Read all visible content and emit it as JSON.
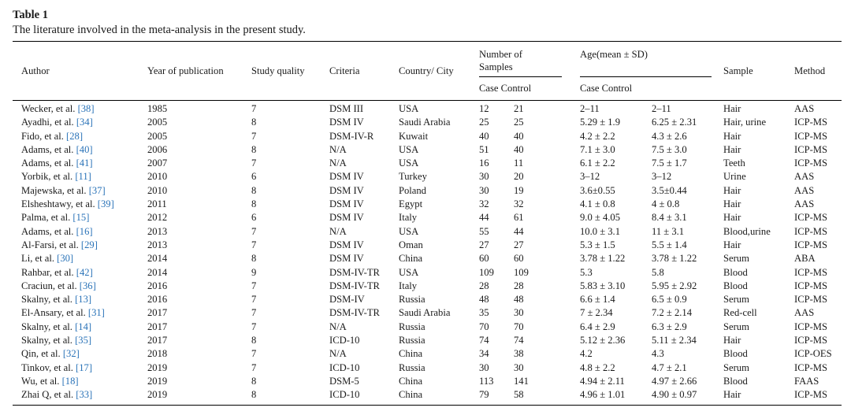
{
  "table": {
    "label": "Table 1",
    "caption": "The literature involved in the meta-analysis in the present study.",
    "headers": {
      "author": "Author",
      "year": "Year of publication",
      "quality": "Study quality",
      "criteria": "Criteria",
      "country": "Country/ City",
      "samples_group": "Number of Samples",
      "samples_line1": "Number of",
      "samples_line2": "Samples",
      "age_group": "Age(mean ± SD)",
      "case_control_left": "Case Control",
      "case_control_right": "Case Control",
      "sample": "Sample",
      "method": "Method"
    },
    "rows": [
      {
        "author": "Wecker, et al.",
        "ref": "[38]",
        "year": "1985",
        "quality": "7",
        "criteria": "DSM III",
        "country": "USA",
        "n_case": "12",
        "n_control": "21",
        "age_case": "2–11",
        "age_control": "2–11",
        "sample": "Hair",
        "method": "AAS"
      },
      {
        "author": "Ayadhi, et al.",
        "ref": "[34]",
        "year": "2005",
        "quality": "8",
        "criteria": "DSM IV",
        "country": "Saudi Arabia",
        "n_case": "25",
        "n_control": "25",
        "age_case": "5.29 ± 1.9",
        "age_control": "6.25 ± 2.31",
        "sample": "Hair, urine",
        "method": "ICP-MS"
      },
      {
        "author": "Fido, et al.",
        "ref": "[28]",
        "year": "2005",
        "quality": "7",
        "criteria": "DSM-IV-R",
        "country": "Kuwait",
        "n_case": "40",
        "n_control": "40",
        "age_case": "4.2 ± 2.2",
        "age_control": "4.3 ± 2.6",
        "sample": "Hair",
        "method": "ICP-MS"
      },
      {
        "author": "Adams, et al.",
        "ref": "[40]",
        "year": "2006",
        "quality": "8",
        "criteria": "N/A",
        "country": "USA",
        "n_case": "51",
        "n_control": "40",
        "age_case": "7.1 ± 3.0",
        "age_control": "7.5 ± 3.0",
        "sample": "Hair",
        "method": "ICP-MS"
      },
      {
        "author": "Adams, et al.",
        "ref": "[41]",
        "year": "2007",
        "quality": "7",
        "criteria": "N/A",
        "country": "USA",
        "n_case": "16",
        "n_control": "11",
        "age_case": "6.1 ± 2.2",
        "age_control": "7.5 ± 1.7",
        "sample": "Teeth",
        "method": "ICP-MS"
      },
      {
        "author": "Yorbik, et al.",
        "ref": "[11]",
        "year": "2010",
        "quality": "6",
        "criteria": "DSM IV",
        "country": "Turkey",
        "n_case": "30",
        "n_control": "20",
        "age_case": "3–12",
        "age_control": "3–12",
        "sample": "Urine",
        "method": "AAS"
      },
      {
        "author": "Majewska, et al.",
        "ref": "[37]",
        "year": "2010",
        "quality": "8",
        "criteria": "DSM IV",
        "country": "Poland",
        "n_case": "30",
        "n_control": "19",
        "age_case": "3.6±0.55",
        "age_control": "3.5±0.44",
        "sample": "Hair",
        "method": "AAS"
      },
      {
        "author": "Elsheshtawy, et al.",
        "ref": "[39]",
        "year": "2011",
        "quality": "8",
        "criteria": "DSM IV",
        "country": "Egypt",
        "n_case": "32",
        "n_control": "32",
        "age_case": "4.1 ± 0.8",
        "age_control": "4 ± 0.8",
        "sample": "Hair",
        "method": "AAS"
      },
      {
        "author": "Palma, et al.",
        "ref": "[15]",
        "year": "2012",
        "quality": "6",
        "criteria": "DSM IV",
        "country": "Italy",
        "n_case": "44",
        "n_control": "61",
        "age_case": "9.0 ± 4.05",
        "age_control": "8.4 ± 3.1",
        "sample": "Hair",
        "method": "ICP-MS"
      },
      {
        "author": "Adams, et al.",
        "ref": "[16]",
        "year": "2013",
        "quality": "7",
        "criteria": "N/A",
        "country": "USA",
        "n_case": "55",
        "n_control": "44",
        "age_case": "10.0 ± 3.1",
        "age_control": "11 ± 3.1",
        "sample": "Blood,urine",
        "method": "ICP-MS"
      },
      {
        "author": "Al-Farsi, et al.",
        "ref": "[29]",
        "year": "2013",
        "quality": "7",
        "criteria": "DSM IV",
        "country": "Oman",
        "n_case": "27",
        "n_control": "27",
        "age_case": "5.3 ± 1.5",
        "age_control": "5.5 ± 1.4",
        "sample": "Hair",
        "method": "ICP-MS"
      },
      {
        "author": "Li, et al.",
        "ref": "[30]",
        "year": "2014",
        "quality": "8",
        "criteria": "DSM IV",
        "country": "China",
        "n_case": "60",
        "n_control": "60",
        "age_case": "3.78 ± 1.22",
        "age_control": "3.78 ± 1.22",
        "sample": "Serum",
        "method": "ABA"
      },
      {
        "author": "Rahbar, et al.",
        "ref": "[42]",
        "year": "2014",
        "quality": "9",
        "criteria": "DSM-IV-TR",
        "country": "USA",
        "n_case": "109",
        "n_control": "109",
        "age_case": "5.3",
        "age_control": "5.8",
        "sample": "Blood",
        "method": "ICP-MS"
      },
      {
        "author": "Craciun, et al.",
        "ref": "[36]",
        "year": "2016",
        "quality": "7",
        "criteria": "DSM-IV-TR",
        "country": "Italy",
        "n_case": "28",
        "n_control": "28",
        "age_case": "5.83 ± 3.10",
        "age_control": "5.95 ± 2.92",
        "sample": "Blood",
        "method": "ICP-MS"
      },
      {
        "author": "Skalny, et al.",
        "ref": "[13]",
        "year": "2016",
        "quality": "7",
        "criteria": "DSM-IV",
        "country": "Russia",
        "n_case": "48",
        "n_control": "48",
        "age_case": "6.6 ± 1.4",
        "age_control": "6.5 ± 0.9",
        "sample": "Serum",
        "method": "ICP-MS"
      },
      {
        "author": "El-Ansary, et al.",
        "ref": "[31]",
        "year": "2017",
        "quality": "7",
        "criteria": "DSM-IV-TR",
        "country": "Saudi Arabia",
        "n_case": "35",
        "n_control": "30",
        "age_case": "7 ± 2.34",
        "age_control": "7.2 ± 2.14",
        "sample": "Red-cell",
        "method": "AAS"
      },
      {
        "author": "Skalny, et al.",
        "ref": "[14]",
        "year": "2017",
        "quality": "7",
        "criteria": "N/A",
        "country": "Russia",
        "n_case": "70",
        "n_control": "70",
        "age_case": "6.4 ± 2.9",
        "age_control": "6.3 ± 2.9",
        "sample": "Serum",
        "method": "ICP-MS"
      },
      {
        "author": "Skalny, et al.",
        "ref": "[35]",
        "year": "2017",
        "quality": "8",
        "criteria": "ICD-10",
        "country": "Russia",
        "n_case": "74",
        "n_control": "74",
        "age_case": "5.12 ± 2.36",
        "age_control": "5.11 ± 2.34",
        "sample": "Hair",
        "method": "ICP-MS"
      },
      {
        "author": "Qin, et al.",
        "ref": "[32]",
        "year": "2018",
        "quality": "7",
        "criteria": "N/A",
        "country": "China",
        "n_case": "34",
        "n_control": "38",
        "age_case": "4.2",
        "age_control": "4.3",
        "sample": "Blood",
        "method": "ICP-OES"
      },
      {
        "author": "Tinkov, et al.",
        "ref": "[17]",
        "year": "2019",
        "quality": "7",
        "criteria": "ICD-10",
        "country": "Russia",
        "n_case": "30",
        "n_control": "30",
        "age_case": "4.8 ± 2.2",
        "age_control": "4.7 ± 2.1",
        "sample": "Serum",
        "method": "ICP-MS"
      },
      {
        "author": "Wu, et al.",
        "ref": "[18]",
        "year": "2019",
        "quality": "8",
        "criteria": "DSM-5",
        "country": "China",
        "n_case": "113",
        "n_control": "141",
        "age_case": "4.94 ± 2.11",
        "age_control": "4.97 ± 2.66",
        "sample": "Blood",
        "method": "FAAS"
      },
      {
        "author": "Zhai Q, et al.",
        "ref": "[33]",
        "year": "2019",
        "quality": "8",
        "criteria": "ICD-10",
        "country": "China",
        "n_case": "79",
        "n_control": "58",
        "age_case": "4.96 ± 1.01",
        "age_control": "4.90 ± 0.97",
        "sample": "Hair",
        "method": "ICP-MS"
      }
    ]
  },
  "colors": {
    "reference_link": "#2a73b8",
    "text": "#1a1a1a",
    "rule": "#000000"
  }
}
